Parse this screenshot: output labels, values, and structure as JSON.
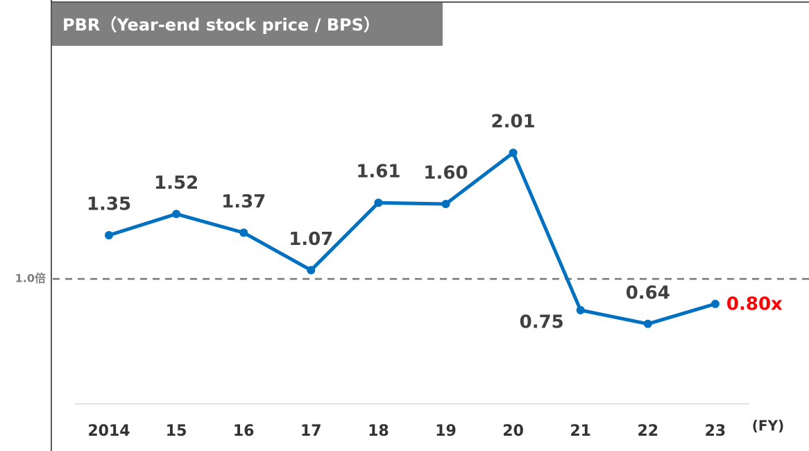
{
  "chart_data": {
    "type": "line",
    "title": "PBR（Year-end stock price / BPS）",
    "x_label": "(FY)",
    "categories": [
      "2014",
      "15",
      "16",
      "17",
      "18",
      "19",
      "20",
      "21",
      "22",
      "23"
    ],
    "series": [
      {
        "name": "PBR",
        "color": "#0070c0",
        "values": [
          1.35,
          1.52,
          1.37,
          1.07,
          1.61,
          1.6,
          2.01,
          0.75,
          0.64,
          0.8
        ],
        "value_labels": [
          "1.35",
          "1.52",
          "1.37",
          "1.07",
          "1.61",
          "1.60",
          "2.01",
          "0.75",
          "0.64",
          "0.80x"
        ]
      }
    ],
    "highlight_color": "#ff0000",
    "reference_line": {
      "value": 1.0,
      "label": "1.0倍"
    },
    "ylim": [
      0,
      2.5
    ]
  }
}
